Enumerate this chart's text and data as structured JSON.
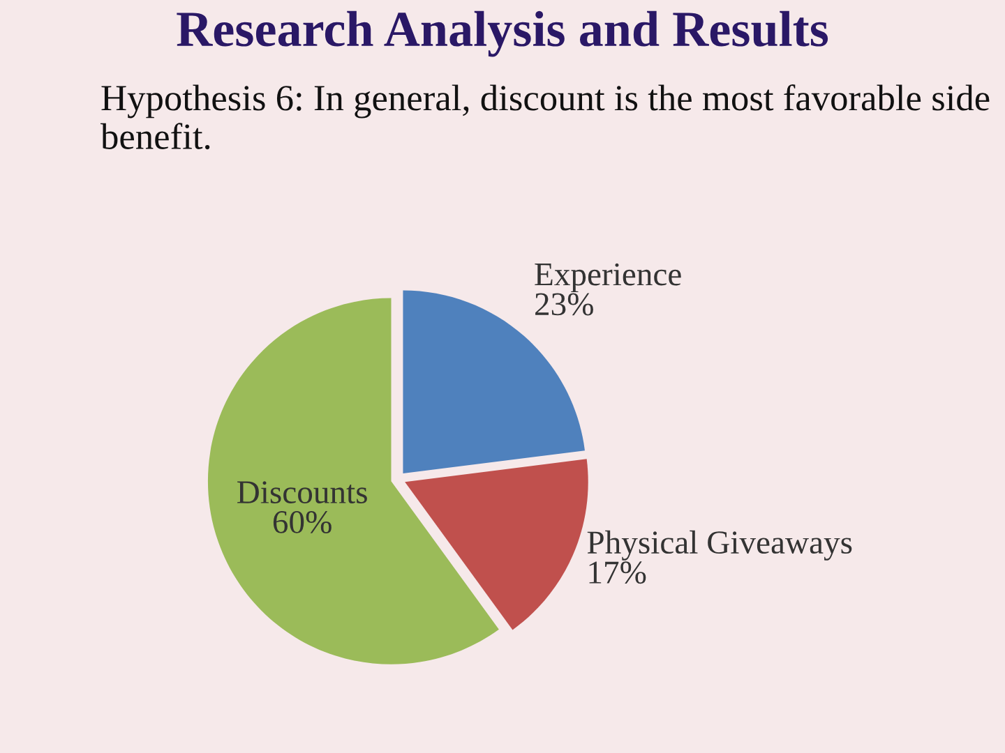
{
  "chart_data": {
    "type": "pie",
    "title": "Research Analysis and Results",
    "subtitle": "Hypothesis 6: In general, discount is the most favorable side benefit.",
    "categories": [
      "Experience",
      "Physical Giveaways",
      "Discounts"
    ],
    "values": [
      23,
      17,
      60
    ],
    "value_labels": [
      "23%",
      "17%",
      "60%"
    ],
    "colors": [
      "#4f81bd",
      "#c0504d",
      "#9bbb59"
    ],
    "legend": false
  }
}
